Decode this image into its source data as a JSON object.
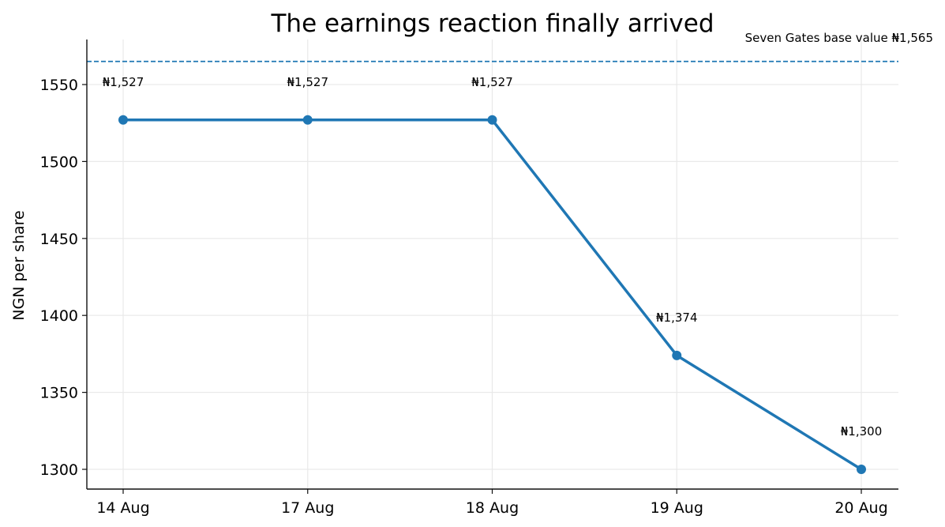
{
  "chart_data": {
    "type": "line",
    "title": "The earnings reaction finally arrived",
    "xlabel": "",
    "ylabel": "NGN per share",
    "categories": [
      "14 Aug",
      "17 Aug",
      "18 Aug",
      "19 Aug",
      "20 Aug"
    ],
    "series": [
      {
        "values": [
          1527,
          1527,
          1527,
          1374,
          1300
        ],
        "labels": [
          "₦1,527",
          "₦1,527",
          "₦1,527",
          "₦1,374",
          "₦1,300"
        ],
        "color": "#1f77b4",
        "marker": "circle"
      }
    ],
    "reference_line": {
      "value": 1565,
      "label": "Seven Gates base value ₦1,565",
      "style": "dashed",
      "color": "#1f77b4"
    },
    "ylim": [
      1287,
      1578
    ],
    "yticks": [
      1300,
      1350,
      1400,
      1450,
      1500,
      1550
    ],
    "grid": true,
    "legend": "none"
  }
}
